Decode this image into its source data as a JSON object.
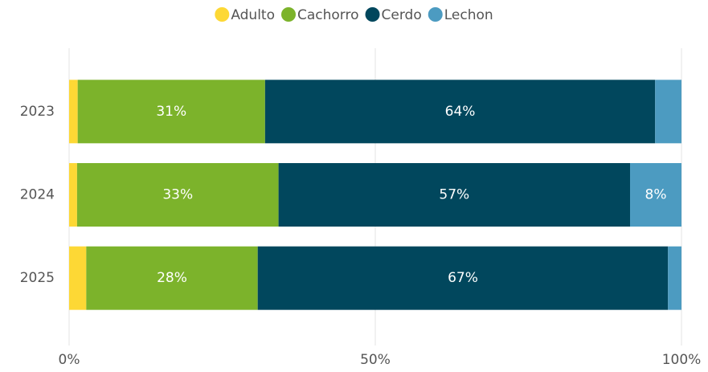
{
  "chart_data": {
    "type": "stacked-bar-horizontal",
    "categories": [
      "2023",
      "2024",
      "2025"
    ],
    "series": [
      {
        "name": "Adulto",
        "color": "#fdd835",
        "values": [
          1.4,
          1.3,
          2.8
        ],
        "value_labels": [
          null,
          null,
          null
        ]
      },
      {
        "name": "Cachorro",
        "color": "#7cb32b",
        "values": [
          30.6,
          32.9,
          28.0
        ],
        "value_labels": [
          "31%",
          "33%",
          "28%"
        ]
      },
      {
        "name": "Cerdo",
        "color": "#01475d",
        "values": [
          63.7,
          57.4,
          67.0
        ],
        "value_labels": [
          "64%",
          "57%",
          "67%"
        ]
      },
      {
        "name": "Lechon",
        "color": "#4c9bc1",
        "values": [
          4.3,
          8.4,
          2.2
        ],
        "value_labels": [
          null,
          "8%",
          null
        ]
      }
    ],
    "xlim": [
      0,
      100
    ],
    "xticks": [
      {
        "value": 0,
        "label": "0%"
      },
      {
        "value": 50,
        "label": "50%"
      },
      {
        "value": 100,
        "label": "100%"
      }
    ],
    "grid": true,
    "legend": "top"
  }
}
